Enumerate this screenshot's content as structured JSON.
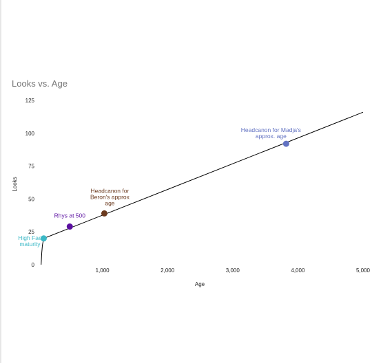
{
  "chart_data": {
    "type": "line",
    "title": "Looks vs. Age",
    "xlabel": "Age",
    "ylabel": "Looks",
    "xlim": [
      0,
      5000
    ],
    "ylim": [
      0,
      125
    ],
    "x_ticks": [
      1000,
      2000,
      3000,
      4000,
      5000
    ],
    "x_tick_labels": [
      "1,000",
      "2,000",
      "3,000",
      "4,000",
      "5,000"
    ],
    "y_ticks": [
      0,
      25,
      50,
      75,
      100,
      125
    ],
    "y_tick_labels": [
      "0",
      "25",
      "50",
      "75",
      "100",
      "125"
    ],
    "grid": false,
    "series": [
      {
        "x": [
          60,
          70,
          80,
          100,
          5000
        ],
        "y": [
          0,
          9,
          15,
          20,
          116
        ],
        "color": "#000000"
      }
    ],
    "annotations": [
      {
        "x": 100,
        "y": 20,
        "label": "High Fae\nmaturity",
        "color": "#3bb8c6"
      },
      {
        "x": 500,
        "y": 29,
        "label": "Rhys at 500",
        "color": "#5a0fa0"
      },
      {
        "x": 1030,
        "y": 39,
        "label": "Headcanon for\nBeron's approx\nage",
        "color": "#6b3a1e"
      },
      {
        "x": 3820,
        "y": 92,
        "label": "Headcanon for Madja's\napprox. age",
        "color": "#6272c2"
      }
    ]
  }
}
